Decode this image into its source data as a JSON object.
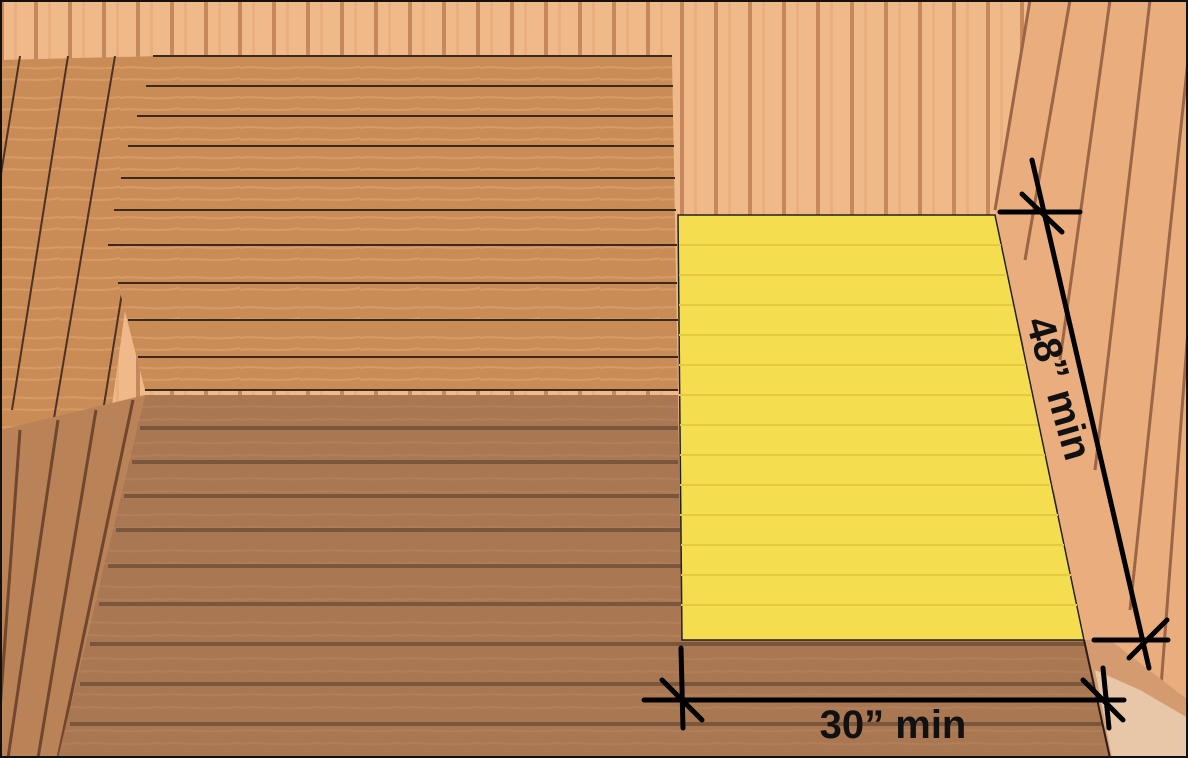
{
  "diagram": {
    "depth_label": "48” min",
    "width_label": "30” min"
  },
  "colors": {
    "wall_light": "#f0b98a",
    "wall_line": "#b77a52",
    "bench_wood": "#c98c57",
    "floor_wood": "#a97751",
    "clear_space": "#f5dd50",
    "dimension_line": "#000000"
  }
}
